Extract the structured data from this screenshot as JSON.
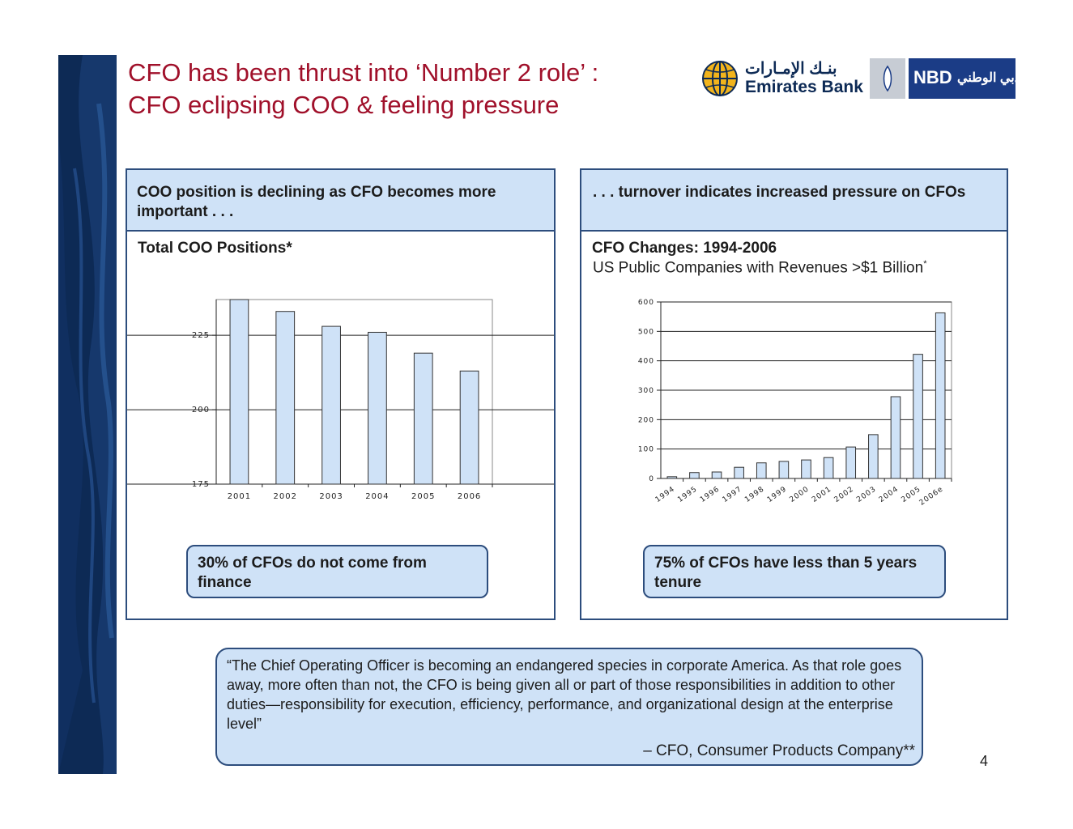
{
  "title": {
    "line1": "CFO has been thrust into ‘Number 2 role’ :",
    "line2": "CFO eclipsing COO & feeling pressure"
  },
  "logos": {
    "emirates_arabic": "بنـك الإمـارات",
    "emirates_latin": "Emirates Bank",
    "nbd_latin": "NBD",
    "nbd_arabic": "بنك دبي الوطني"
  },
  "left_panel": {
    "header": "COO position is declining as CFO becomes more important . . .",
    "chart_title": "Total COO Positions*",
    "callout": "30% of CFOs do not come from finance"
  },
  "right_panel": {
    "header": ". . . turnover indicates increased pressure on CFOs",
    "chart_title": "CFO Changes: 1994-2006",
    "chart_subtitle": "US Public Companies with Revenues >$1 Billion",
    "chart_subtitle_mark": "*",
    "callout": "75% of CFOs have less than 5 years tenure"
  },
  "quote": {
    "text": "“The Chief Operating Officer is becoming an endangered species in corporate America. As that role goes away, more often than not, the CFO is being given all or part of those responsibilities in addition to other duties—responsibility for execution, efficiency, performance, and organizational design at the enterprise level”",
    "attribution": "– CFO, Consumer Products Company",
    "attribution_mark": "**"
  },
  "page_number": "4",
  "colors": {
    "title": "#a0102a",
    "panel_fill": "#cfe2f7",
    "border": "#2d4d7d",
    "bar_fill": "#cfe2f7",
    "sidebar": "#0d2a55"
  },
  "chart_data": [
    {
      "type": "bar",
      "title": "Total COO Positions*",
      "categories": [
        "2001",
        "2002",
        "2003",
        "2004",
        "2005",
        "2006"
      ],
      "values": [
        237,
        233,
        228,
        226,
        219,
        213
      ],
      "ylim": [
        175,
        237
      ],
      "yticks": [
        "175",
        "200",
        "225"
      ],
      "ytick_values": [
        175,
        200,
        225
      ],
      "grid": true,
      "xlabel": "",
      "ylabel": ""
    },
    {
      "type": "bar",
      "title": "CFO Changes: 1994-2006",
      "subtitle": "US Public Companies with Revenues >$1 Billion*",
      "categories": [
        "1994",
        "1995",
        "1996",
        "1997",
        "1998",
        "1999",
        "2000",
        "2001",
        "2002",
        "2003",
        "2004",
        "2005",
        "2006e"
      ],
      "values": [
        6,
        20,
        22,
        38,
        53,
        58,
        63,
        71,
        107,
        149,
        278,
        422,
        563
      ],
      "ylim": [
        0,
        600
      ],
      "yticks": [
        "0",
        "100",
        "200",
        "300",
        "400",
        "500",
        "600"
      ],
      "ytick_values": [
        0,
        100,
        200,
        300,
        400,
        500,
        600
      ],
      "grid": true,
      "xlabel": "",
      "ylabel": ""
    }
  ]
}
